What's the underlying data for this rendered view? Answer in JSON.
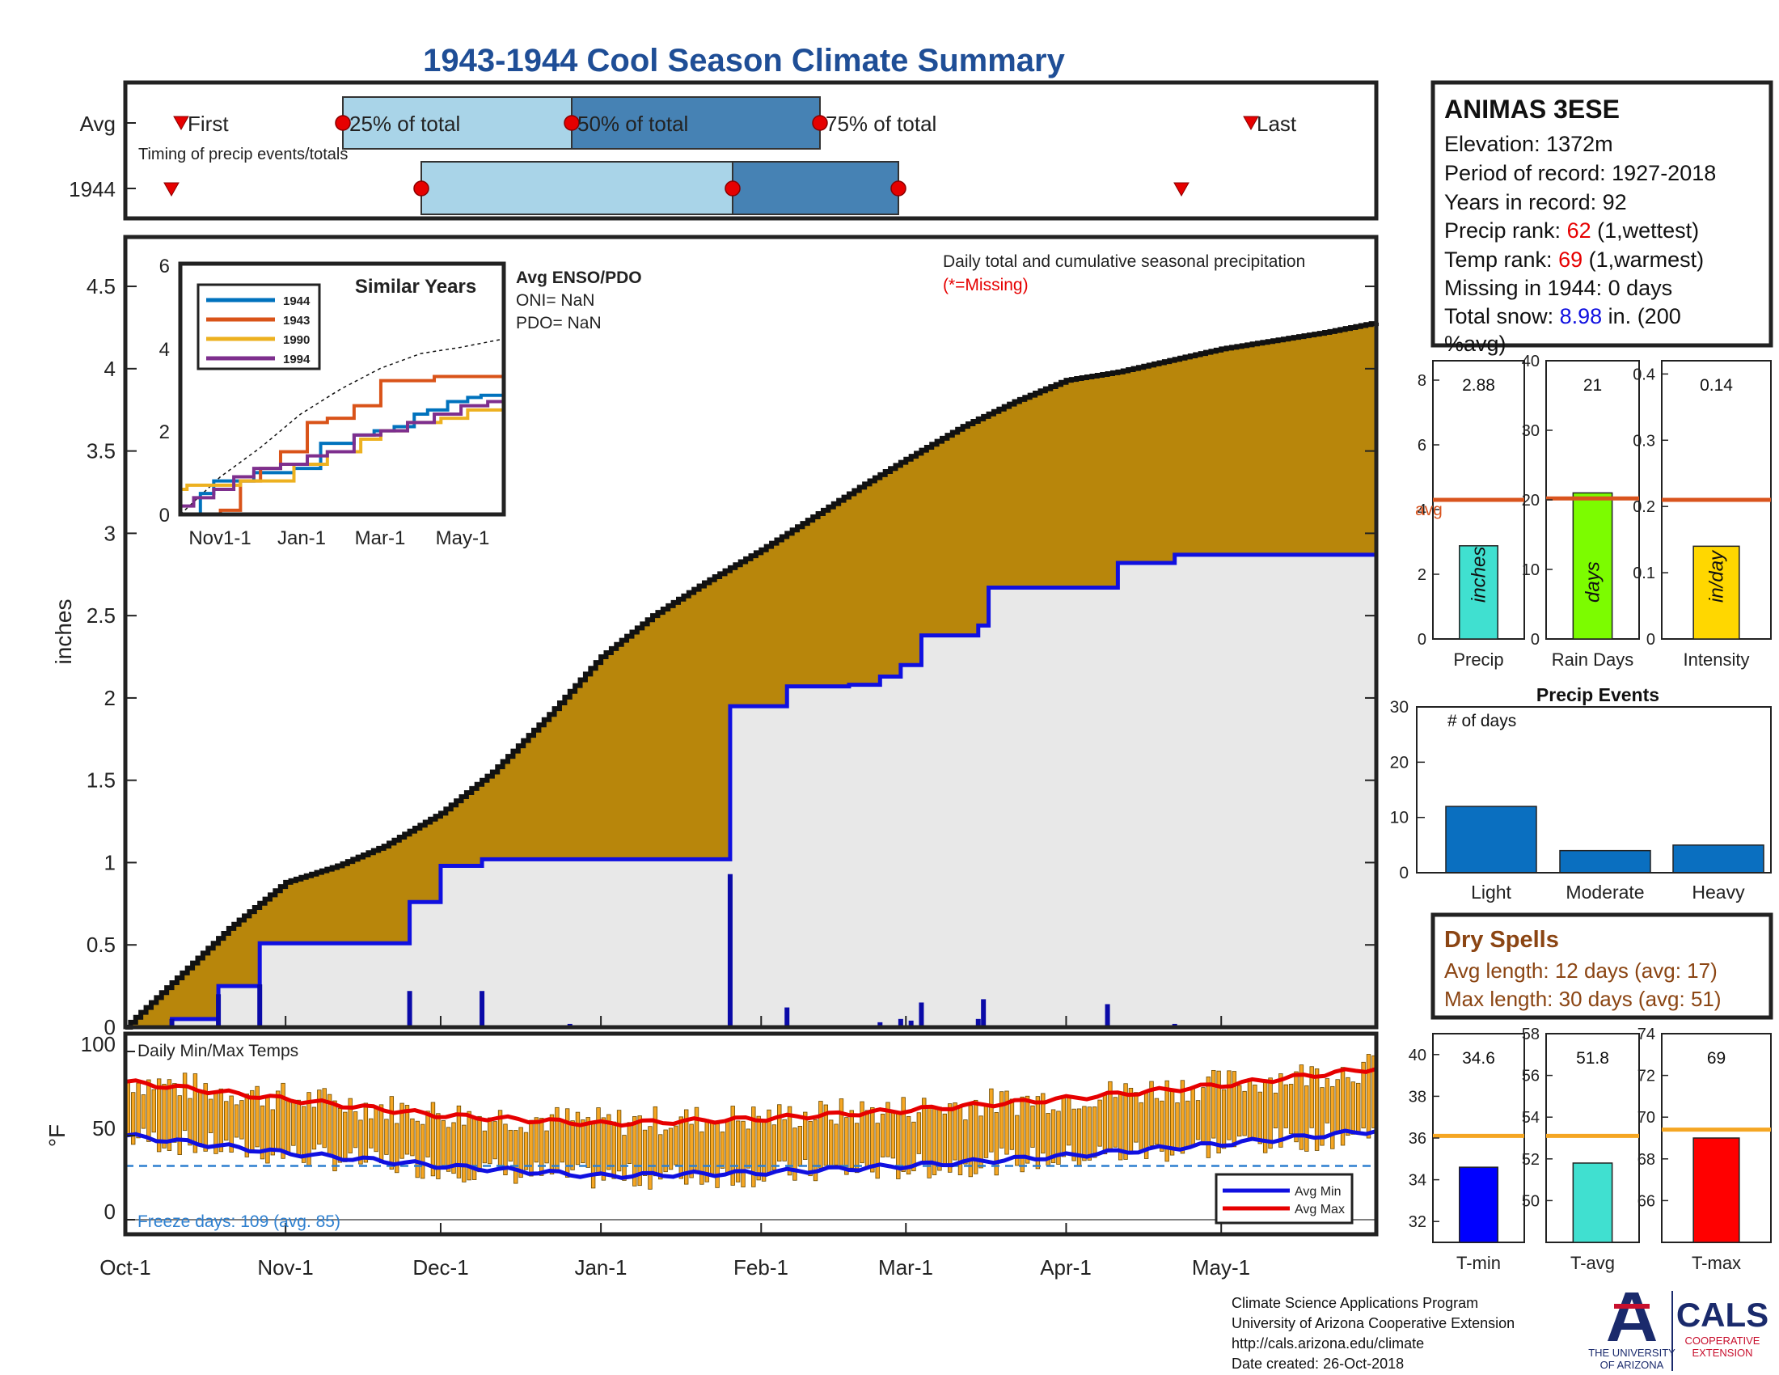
{
  "title": "1943-1944 Cool Season Climate Summary",
  "colors": {
    "title": "#1f4e96",
    "cumulative_fill": "#b8860b",
    "season_fill": "#e8e8e8",
    "season_line": "#1010e0",
    "avg_line": "#d9541e",
    "temp_bar": "#f5a623",
    "temp_max": "#e60000",
    "temp_min": "#1010e0",
    "freeze_line": "#2d7fcf",
    "light_blue": "#a9d4e8",
    "dark_blue": "#4682b4",
    "marker_red": "#e60000",
    "dry_spell": "#8b4513"
  },
  "timing": {
    "row_labels": [
      "Avg",
      "1944"
    ],
    "avg_labels": {
      "first": "First",
      "p25": "25% of total",
      "p50": "50% of total",
      "p75": "75% of total",
      "last": "Last"
    },
    "caption": "Timing of precip events/totals"
  },
  "station": {
    "name": "ANIMAS 3ESE",
    "elevation_label": "Elevation:",
    "elevation": "1372m",
    "period_label": "Period of record:",
    "period": "1927-2018",
    "years_label": "Years in record:",
    "years": "92",
    "precip_rank_label": "Precip rank:",
    "precip_rank": "62",
    "precip_rank_note": "(1,wettest)",
    "temp_rank_label": "Temp rank:",
    "temp_rank": "69",
    "temp_rank_note": "(1,warmest)",
    "missing_label": "Missing in 1944:",
    "missing": "0 days",
    "snow_label": "Total snow:",
    "snow_value": "8.98",
    "snow_unit": "in. (200",
    "snow_pct": "%avg)"
  },
  "main": {
    "ylabel": "inches",
    "caption": "Daily total and cumulative seasonal precipitation",
    "missing_note": "(*=Missing)"
  },
  "enso": {
    "title": "Avg ENSO/PDO",
    "oni": "ONI= NaN",
    "pdo": "PDO= NaN"
  },
  "similar": {
    "title": "Similar Years",
    "legend": [
      "1944",
      "1943",
      "1990",
      "1994"
    ],
    "colors": [
      "#0072bd",
      "#d95319",
      "#edb120",
      "#7e2f8e"
    ],
    "xticks": [
      "Nov1-1",
      "Jan-1",
      "Mar-1",
      "May-1"
    ],
    "yticks": [
      "0",
      "2",
      "4",
      "6"
    ]
  },
  "temps": {
    "title": "Daily Min/Max Temps",
    "ylabel": "°F",
    "freeze_label": "Freeze days: 109 (avg. 85)",
    "legend_min": "Avg Min",
    "legend_max": "Avg Max"
  },
  "month_labels": [
    "Oct-1",
    "Nov-1",
    "Dec-1",
    "Jan-1",
    "Feb-1",
    "Mar-1",
    "Apr-1",
    "May-1"
  ],
  "summary_precip": {
    "labels": [
      "Precip",
      "Rain Days",
      "Intensity"
    ],
    "values_text": [
      "2.88",
      "21",
      "0.14"
    ],
    "bar_units": [
      "inches",
      "days",
      "in/day"
    ],
    "avg_label": "avg"
  },
  "events": {
    "title": "Precip Events",
    "ylabel": "# of days",
    "labels": [
      "Light",
      "Moderate",
      "Heavy"
    ]
  },
  "dry_spells": {
    "title": "Dry Spells",
    "avg": "Avg length: 12 days (avg: 17)",
    "max": "Max length: 30 days (avg: 51)"
  },
  "summary_temp": {
    "labels": [
      "T-min",
      "T-avg",
      "T-max"
    ],
    "values_text": [
      "34.6",
      "51.8",
      "69"
    ]
  },
  "footer": {
    "line1": "Climate Science Applications Program",
    "line2": "University of Arizona Cooperative Extension",
    "line3": "http://cals.arizona.edu/climate",
    "line4": " Date created: 26-Oct-2018"
  },
  "logos": {
    "ua_line1": "THE UNIVERSITY",
    "ua_line2": "OF ARIZONA",
    "cals": "CALS",
    "cals_sub1": "COOPERATIVE",
    "cals_sub2": "EXTENSION"
  },
  "chart_data": [
    {
      "type": "area",
      "name_ref": "main",
      "xlabel": "",
      "ylabel": "inches",
      "ylim": [
        0,
        4.8
      ],
      "yticks": [
        0,
        0.5,
        1,
        1.5,
        2,
        2.5,
        3,
        3.5,
        4,
        4.5
      ],
      "xlim_days": [
        0,
        242
      ],
      "month_tick_days": [
        0,
        31,
        61,
        92,
        123,
        151,
        182,
        212
      ],
      "avg_cumulative": {
        "days": [
          0,
          10,
          20,
          31,
          41,
          50,
          61,
          71,
          82,
          92,
          102,
          112,
          123,
          133,
          143,
          151,
          162,
          172,
          182,
          192,
          202,
          212,
          222,
          232,
          242
        ],
        "values": [
          0,
          0.3,
          0.6,
          0.88,
          0.98,
          1.1,
          1.3,
          1.55,
          1.9,
          2.25,
          2.5,
          2.7,
          2.9,
          3.1,
          3.3,
          3.45,
          3.65,
          3.8,
          3.93,
          3.98,
          4.05,
          4.12,
          4.17,
          4.22,
          4.28
        ]
      },
      "season_cumulative": {
        "days": [
          0,
          9,
          18,
          26,
          55,
          61,
          69,
          92,
          117,
          128,
          140,
          146,
          150,
          154,
          165,
          167,
          170,
          180,
          190,
          192,
          203,
          215,
          242
        ],
        "values": [
          0,
          0.05,
          0.25,
          0.51,
          0.76,
          0.98,
          1.02,
          1.02,
          1.95,
          2.07,
          2.08,
          2.13,
          2.2,
          2.38,
          2.44,
          2.67,
          2.67,
          2.67,
          2.67,
          2.82,
          2.87,
          2.87,
          2.88
        ]
      },
      "daily_totals": {
        "days": [
          9,
          18,
          26,
          55,
          69,
          86,
          117,
          128,
          146,
          150,
          152,
          154,
          165,
          166,
          190,
          203
        ],
        "values": [
          0.05,
          0.2,
          0.26,
          0.22,
          0.22,
          0.02,
          0.93,
          0.12,
          0.03,
          0.05,
          0.04,
          0.15,
          0.05,
          0.17,
          0.14,
          0.02
        ]
      }
    },
    {
      "type": "line",
      "name_ref": "similar_years",
      "title": "Similar Years",
      "ylim": [
        0,
        6
      ],
      "xlim_days": [
        0,
        242
      ],
      "series": [
        {
          "name": "1944",
          "x": [
            0,
            15,
            25,
            40,
            55,
            80,
            85,
            95,
            105,
            115,
            130,
            145,
            160,
            175,
            185,
            200,
            215,
            225,
            242
          ],
          "y": [
            0,
            0.5,
            0.8,
            0.8,
            1,
            1,
            1.1,
            1.1,
            1.7,
            1.7,
            1.9,
            2,
            2.1,
            2.4,
            2.5,
            2.7,
            2.8,
            2.85,
            2.88
          ]
        },
        {
          "name": "1943",
          "x": [
            0,
            30,
            45,
            60,
            75,
            95,
            110,
            130,
            150,
            165,
            190,
            215,
            242
          ],
          "y": [
            0,
            0.1,
            0.8,
            1.1,
            1.5,
            2.2,
            2.3,
            2.6,
            3.2,
            3.2,
            3.3,
            3.3,
            3.4
          ]
        },
        {
          "name": "1990",
          "x": [
            0,
            5,
            25,
            45,
            65,
            85,
            110,
            135,
            150,
            170,
            195,
            215,
            242
          ],
          "y": [
            0.6,
            0.7,
            0.7,
            0.8,
            0.8,
            1.2,
            1.5,
            1.8,
            2.0,
            2.2,
            2.3,
            2.5,
            2.6
          ]
        },
        {
          "name": "1994",
          "x": [
            0,
            10,
            25,
            40,
            55,
            75,
            95,
            110,
            130,
            150,
            170,
            190,
            210,
            230,
            242
          ],
          "y": [
            0.2,
            0.4,
            0.6,
            0.9,
            1.1,
            1.2,
            1.4,
            1.5,
            1.9,
            2.0,
            2.2,
            2.4,
            2.6,
            2.7,
            2.8
          ]
        }
      ],
      "avg_dashed": {
        "x": [
          0,
          30,
          60,
          90,
          120,
          150,
          180,
          210,
          242
        ],
        "y": [
          0,
          0.9,
          1.6,
          2.4,
          3.0,
          3.5,
          3.85,
          4.0,
          4.2
        ]
      }
    },
    {
      "type": "bar",
      "name_ref": "daily_temps",
      "title": "Daily Min/Max Temps",
      "ylabel": "°F",
      "ylim": [
        -5,
        100
      ],
      "yticks": [
        0,
        50,
        100
      ],
      "freeze_line": 32,
      "avg_max": {
        "days": [
          0,
          30,
          61,
          92,
          123,
          151,
          182,
          212,
          242
        ],
        "values": [
          82,
          72,
          62,
          57,
          60,
          65,
          72,
          80,
          90
        ]
      },
      "avg_min": {
        "days": [
          0,
          30,
          61,
          92,
          123,
          151,
          182,
          212,
          242
        ],
        "values": [
          50,
          40,
          32,
          26,
          28,
          32,
          38,
          45,
          53
        ]
      }
    },
    {
      "type": "bar",
      "name_ref": "precip_summary",
      "categories": [
        "Precip",
        "Rain Days",
        "Intensity"
      ],
      "values": [
        2.88,
        21,
        0.14
      ],
      "averages": [
        4.3,
        20.2,
        0.21
      ],
      "ylims": [
        [
          0,
          8.6
        ],
        [
          0,
          40
        ],
        [
          0,
          0.42
        ]
      ],
      "yticks": [
        [
          0,
          2,
          4,
          6,
          8
        ],
        [
          0,
          10,
          20,
          30,
          40
        ],
        [
          0,
          0.1,
          0.2,
          0.3,
          0.4
        ]
      ],
      "bar_colors": [
        "#40e0d0",
        "#7cfc00",
        "#ffd700"
      ]
    },
    {
      "type": "bar",
      "name_ref": "precip_events",
      "title": "Precip Events",
      "categories": [
        "Light",
        "Moderate",
        "Heavy"
      ],
      "values": [
        12,
        4,
        5
      ],
      "ylim": [
        0,
        30
      ],
      "yticks": [
        0,
        10,
        20,
        30
      ]
    },
    {
      "type": "bar",
      "name_ref": "temp_summary",
      "categories": [
        "T-min",
        "T-avg",
        "T-max"
      ],
      "values": [
        34.6,
        51.8,
        69
      ],
      "averages": [
        36.1,
        53.1,
        69.4
      ],
      "ylims": [
        [
          31,
          41
        ],
        [
          48,
          58
        ],
        [
          64,
          74
        ]
      ],
      "yticks": [
        [
          32,
          34,
          36,
          38,
          40
        ],
        [
          50,
          52,
          54,
          56,
          58
        ],
        [
          66,
          68,
          70,
          72,
          74
        ]
      ],
      "bar_colors": [
        "#0000ff",
        "#40e0d0",
        "#ff0000"
      ]
    }
  ]
}
